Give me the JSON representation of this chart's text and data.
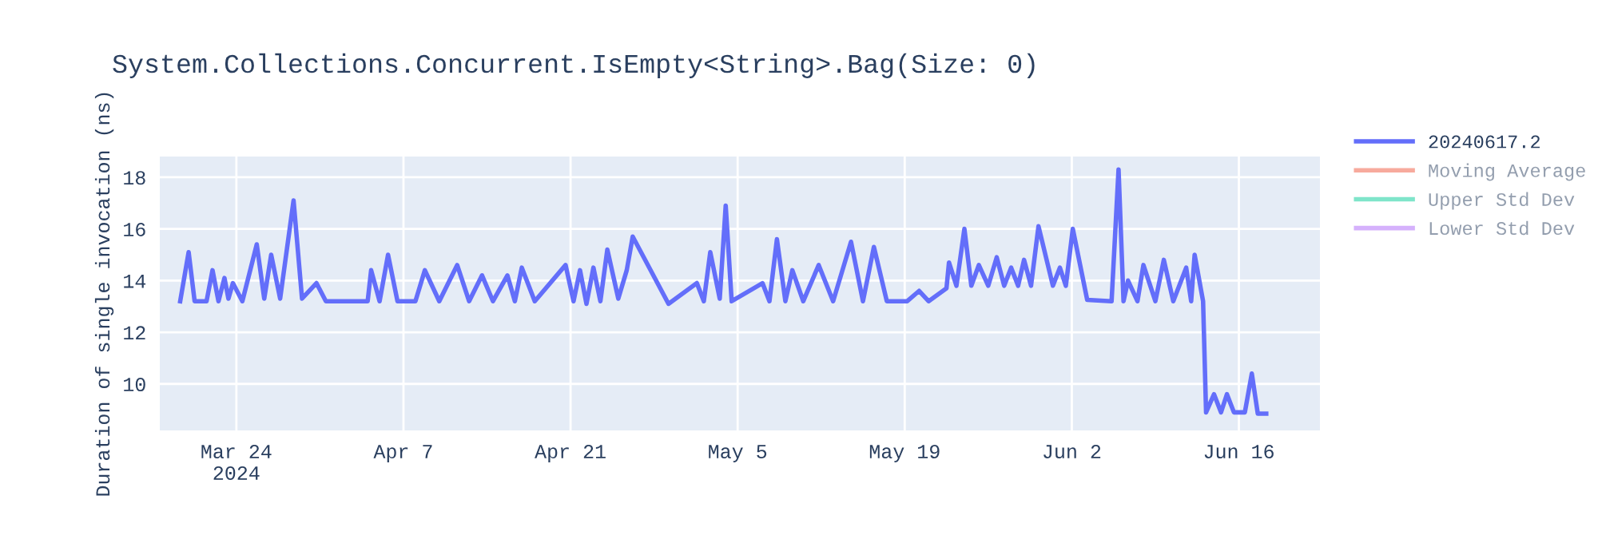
{
  "chart_data": {
    "type": "line",
    "title": "System.Collections.Concurrent.IsEmpty<String>.Bag(Size: 0)",
    "ylabel": "Duration of single invocation (ns)",
    "xlim": [
      "2024-03-17T14:00",
      "2024-06-22T19:00"
    ],
    "xticks": [
      {
        "value": "2024-03-24",
        "label": "Mar 24\n2024"
      },
      {
        "value": "2024-04-07",
        "label": "Apr 7"
      },
      {
        "value": "2024-04-21",
        "label": "Apr 21"
      },
      {
        "value": "2024-05-05",
        "label": "May 5"
      },
      {
        "value": "2024-05-19",
        "label": "May 19"
      },
      {
        "value": "2024-06-02",
        "label": "Jun 2"
      },
      {
        "value": "2024-06-16",
        "label": "Jun 16"
      }
    ],
    "ylim": [
      8.2,
      18.8
    ],
    "yticks": [
      10,
      12,
      14,
      16,
      18
    ],
    "grid": true,
    "legend": "top right",
    "series": [
      {
        "name": "20240617.2",
        "color": "#636efa",
        "x": [
          "2024-03-19T07:00",
          "2024-03-20",
          "2024-03-20T12:00",
          "2024-03-21T12:00",
          "2024-03-22",
          "2024-03-22T12:00",
          "2024-03-23",
          "2024-03-23T08:00",
          "2024-03-23T17:00",
          "2024-03-24T12:00",
          "2024-03-25T17:00",
          "2024-03-26T08:00",
          "2024-03-26T22:00",
          "2024-03-27T16:00",
          "2024-03-28T19:00",
          "2024-03-29T12:00",
          "2024-03-30T17:00",
          "2024-03-31T12:00",
          "2024-04-04",
          "2024-04-04T07:00",
          "2024-04-05",
          "2024-04-05T17:00",
          "2024-04-06T12:00",
          "2024-04-08",
          "2024-04-08T19:00",
          "2024-04-10",
          "2024-04-11T12:00",
          "2024-04-12T12:00",
          "2024-04-13T14:00",
          "2024-04-14T12:00",
          "2024-04-15T17:00",
          "2024-04-16T08:00",
          "2024-04-16T22:00",
          "2024-04-18",
          "2024-04-20T14:00",
          "2024-04-21T06:00",
          "2024-04-21T19:00",
          "2024-04-22T08:00",
          "2024-04-22T22:00",
          "2024-04-23T12:00",
          "2024-04-24T02:00",
          "2024-04-25",
          "2024-04-25T17:00",
          "2024-04-26T05:00",
          "2024-04-29T05:00",
          "2024-05-01T14:00",
          "2024-05-02T04:00",
          "2024-05-02T17:00",
          "2024-05-03T12:00",
          "2024-05-04",
          "2024-05-04T12:00",
          "2024-05-07T02:00",
          "2024-05-07T16:00",
          "2024-05-08T07:00",
          "2024-05-09",
          "2024-05-09T14:00",
          "2024-05-10T12:00",
          "2024-05-11T19:00",
          "2024-05-13",
          "2024-05-14T12:00",
          "2024-05-15T12:00",
          "2024-05-16T10:00",
          "2024-05-17T12:00",
          "2024-05-19T05:00",
          "2024-05-20T05:00",
          "2024-05-21",
          "2024-05-22T12:00",
          "2024-05-22T17:00",
          "2024-05-23T08:00",
          "2024-05-24",
          "2024-05-24T14:00",
          "2024-05-25T05:00",
          "2024-05-26",
          "2024-05-26T17:00",
          "2024-05-27T08:00",
          "2024-05-27T22:00",
          "2024-05-28T12:00",
          "2024-05-29",
          "2024-05-29T14:00",
          "2024-05-30T05:00",
          "2024-05-31T10:00",
          "2024-06-01",
          "2024-06-01T12:00",
          "2024-06-02T02:00",
          "2024-06-03T07:00",
          "2024-06-05T08:00",
          "2024-06-05T22:00",
          "2024-06-06T08:00",
          "2024-06-06T17:00",
          "2024-06-07T12:00",
          "2024-06-08",
          "2024-06-09",
          "2024-06-09T17:00",
          "2024-06-10T12:00",
          "2024-06-11T14:00",
          "2024-06-12",
          "2024-06-12T07:00",
          "2024-06-13",
          "2024-06-13T06:00",
          "2024-06-13T22:00",
          "2024-06-14T12:00",
          "2024-06-15",
          "2024-06-15T14:00",
          "2024-06-16T12:00",
          "2024-06-17T02:00",
          "2024-06-17T14:00",
          "2024-06-18T07:00"
        ],
        "values": [
          13.2,
          15.1,
          13.2,
          13.2,
          14.4,
          13.2,
          14.1,
          13.3,
          13.9,
          13.2,
          15.4,
          13.3,
          15.0,
          13.3,
          17.1,
          13.3,
          13.9,
          13.2,
          13.2,
          14.4,
          13.2,
          15.0,
          13.2,
          13.2,
          14.4,
          13.2,
          14.6,
          13.2,
          14.2,
          13.2,
          14.2,
          13.2,
          14.5,
          13.2,
          14.6,
          13.2,
          14.4,
          13.1,
          14.5,
          13.2,
          15.2,
          13.3,
          14.4,
          15.7,
          13.1,
          13.9,
          13.2,
          15.1,
          13.3,
          16.9,
          13.2,
          13.9,
          13.2,
          15.6,
          13.2,
          14.4,
          13.2,
          14.6,
          13.2,
          15.5,
          13.2,
          15.3,
          13.2,
          13.2,
          13.6,
          13.2,
          13.7,
          14.7,
          13.8,
          16.0,
          13.8,
          14.6,
          13.8,
          14.9,
          13.8,
          14.5,
          13.8,
          14.8,
          13.8,
          16.1,
          13.8,
          14.5,
          13.8,
          16.0,
          13.25,
          13.2,
          18.3,
          13.2,
          14.0,
          13.2,
          14.6,
          13.2,
          14.8,
          13.2,
          14.5,
          13.2,
          15.0,
          13.2,
          8.9,
          9.6,
          8.9,
          9.6,
          8.9,
          8.9,
          10.4,
          8.85,
          8.85
        ]
      },
      {
        "name": "Moving Average",
        "color": "#ef553b"
      },
      {
        "name": "Upper Std Dev",
        "color": "#00cc96"
      },
      {
        "name": "Lower Std Dev",
        "color": "#ab63fa"
      }
    ]
  }
}
